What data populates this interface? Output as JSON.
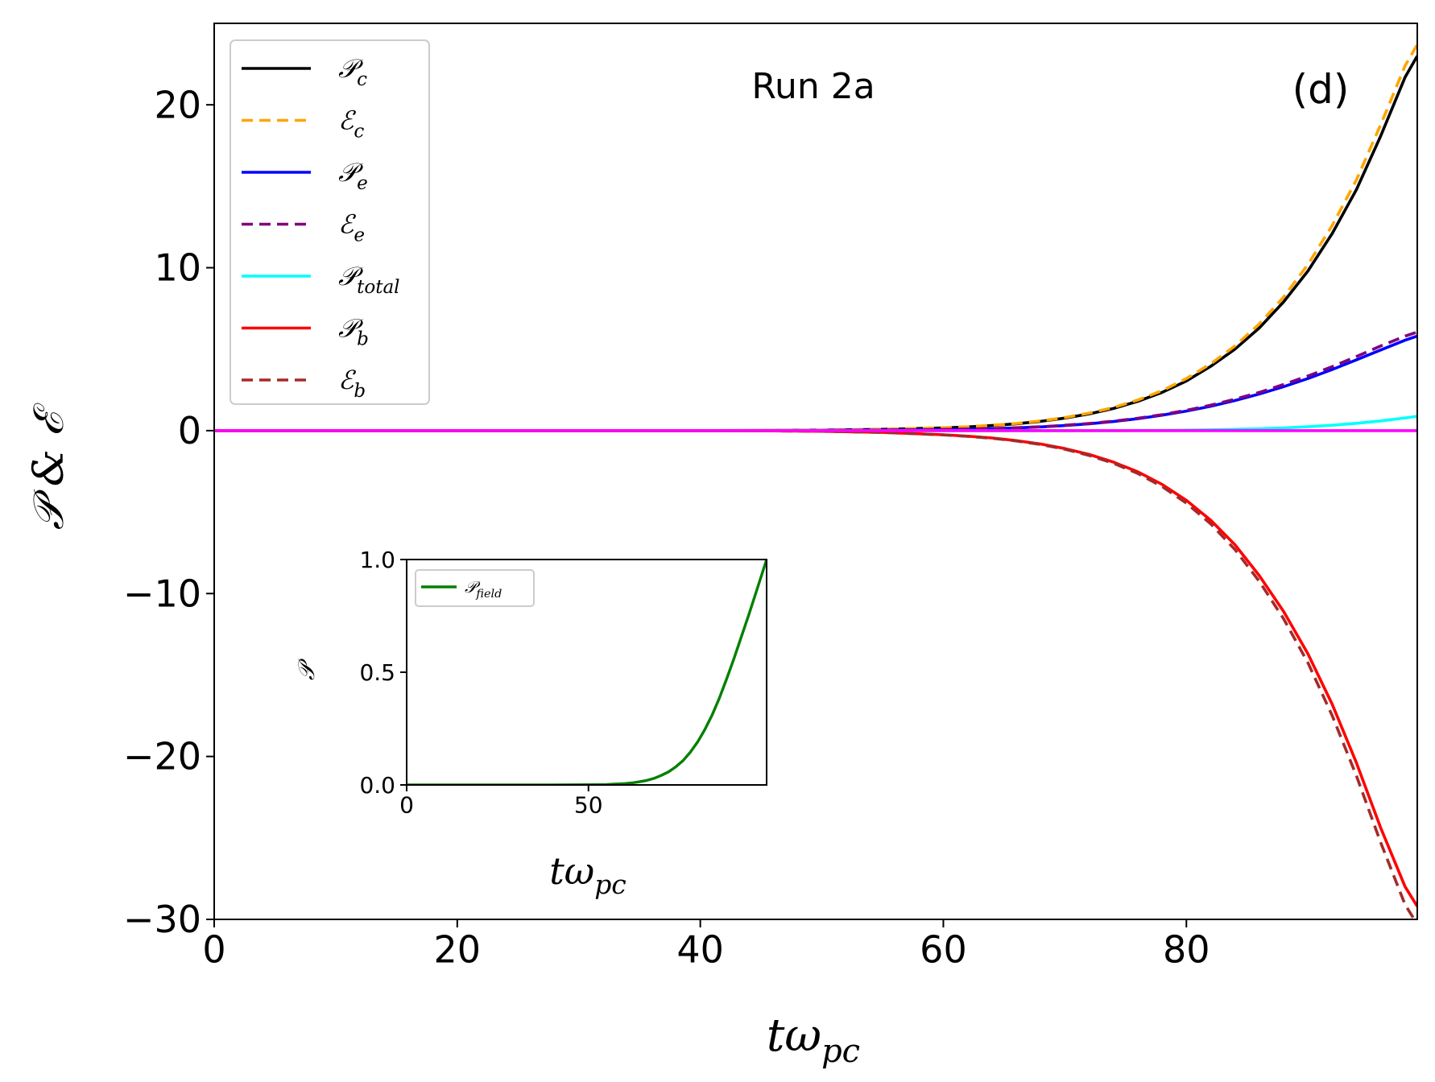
{
  "chart_data": [
    {
      "id": "main",
      "type": "line",
      "title": "",
      "annotations": [
        {
          "id": "run-label",
          "text": "Run 2a"
        },
        {
          "id": "panel-label",
          "text": "(d)"
        }
      ],
      "xlabel": {
        "base": "tω",
        "sub": "pc"
      },
      "ylabel": "𝒫 & ℰ",
      "xlim": [
        0,
        99
      ],
      "ylim": [
        -30,
        25
      ],
      "xticks": [
        0,
        20,
        40,
        60,
        80
      ],
      "yticks": [
        20,
        10,
        0,
        -10,
        -20,
        -30
      ],
      "grid": false,
      "legend_position": "top-left",
      "x": [
        0,
        10,
        20,
        30,
        40,
        45,
        50,
        55,
        60,
        62,
        64,
        66,
        68,
        70,
        72,
        74,
        76,
        78,
        80,
        82,
        84,
        86,
        88,
        90,
        92,
        94,
        96,
        98,
        99
      ],
      "series": [
        {
          "name": "𝒫c",
          "base": "𝒫",
          "sub": "c",
          "color": "#000000",
          "dash": "solid",
          "values": [
            0,
            0,
            0,
            0,
            0,
            0.01,
            0.03,
            0.08,
            0.17,
            0.23,
            0.31,
            0.42,
            0.57,
            0.77,
            1.03,
            1.36,
            1.8,
            2.35,
            3.05,
            3.95,
            5.0,
            6.3,
            7.9,
            9.8,
            12.1,
            14.8,
            18.1,
            21.7,
            23.0
          ]
        },
        {
          "name": "ℰc",
          "base": "ℰ",
          "sub": "c",
          "color": "#ffa500",
          "dash": "dashed",
          "values": [
            0,
            0,
            0,
            0,
            0,
            0.01,
            0.03,
            0.08,
            0.18,
            0.24,
            0.33,
            0.44,
            0.6,
            0.8,
            1.08,
            1.42,
            1.88,
            2.45,
            3.2,
            4.1,
            5.2,
            6.55,
            8.2,
            10.2,
            12.6,
            15.4,
            18.8,
            22.4,
            23.7
          ]
        },
        {
          "name": "𝒫e",
          "base": "𝒫",
          "sub": "e",
          "color": "#0000ff",
          "dash": "solid",
          "values": [
            0,
            0,
            0,
            0,
            0,
            0,
            0.01,
            0.03,
            0.07,
            0.09,
            0.12,
            0.17,
            0.23,
            0.31,
            0.42,
            0.56,
            0.73,
            0.95,
            1.2,
            1.5,
            1.85,
            2.25,
            2.7,
            3.2,
            3.75,
            4.35,
            4.95,
            5.55,
            5.8
          ]
        },
        {
          "name": "ℰe",
          "base": "ℰ",
          "sub": "e",
          "color": "#800080",
          "dash": "dashed",
          "values": [
            0,
            0,
            0,
            0,
            0,
            0,
            0.01,
            0.03,
            0.07,
            0.1,
            0.13,
            0.18,
            0.24,
            0.33,
            0.44,
            0.58,
            0.76,
            0.98,
            1.25,
            1.56,
            1.93,
            2.35,
            2.83,
            3.35,
            3.93,
            4.55,
            5.2,
            5.8,
            6.05
          ]
        },
        {
          "name": "𝒫total",
          "base": "𝒫",
          "sub": "total",
          "color": "#00ffff",
          "dash": "solid",
          "values": [
            0,
            0,
            0,
            0,
            0,
            0,
            0,
            0,
            0,
            0,
            0,
            0,
            0,
            0,
            0,
            0,
            0.01,
            0.02,
            0.03,
            0.05,
            0.08,
            0.12,
            0.17,
            0.24,
            0.33,
            0.45,
            0.6,
            0.78,
            0.88
          ]
        },
        {
          "name": "𝒫b",
          "base": "𝒫",
          "sub": "b",
          "color": "#ff0000",
          "dash": "solid",
          "values": [
            0,
            0,
            0,
            0,
            0,
            -0.01,
            -0.04,
            -0.11,
            -0.25,
            -0.34,
            -0.45,
            -0.61,
            -0.82,
            -1.1,
            -1.46,
            -1.93,
            -2.53,
            -3.3,
            -4.28,
            -5.5,
            -7.0,
            -8.9,
            -11.1,
            -13.7,
            -16.8,
            -20.4,
            -24.4,
            -28.0,
            -29.2
          ]
        },
        {
          "name": "ℰb",
          "base": "ℰ",
          "sub": "b",
          "color": "#a52a2a",
          "dash": "dashed",
          "values": [
            0,
            0,
            0,
            0,
            0,
            -0.01,
            -0.04,
            -0.11,
            -0.26,
            -0.35,
            -0.47,
            -0.63,
            -0.85,
            -1.14,
            -1.52,
            -2.0,
            -2.63,
            -3.43,
            -4.45,
            -5.72,
            -7.3,
            -9.25,
            -11.55,
            -14.25,
            -17.5,
            -21.2,
            -25.3,
            -29.1,
            -30.3
          ]
        },
        {
          "name": "zero",
          "color": "#ff00ff",
          "dash": "solid",
          "legend": false,
          "values": [
            0,
            0,
            0,
            0,
            0,
            0,
            0,
            0,
            0,
            0,
            0,
            0,
            0,
            0,
            0,
            0,
            0,
            0,
            0,
            0,
            0,
            0,
            0,
            0,
            0,
            0,
            0,
            0,
            0
          ]
        }
      ]
    },
    {
      "id": "inset",
      "type": "line",
      "title": "",
      "xlabel": {
        "base": "tω",
        "sub": "pc"
      },
      "ylabel": "𝒫",
      "xlim": [
        0,
        99
      ],
      "ylim": [
        0,
        1
      ],
      "xticks": [
        0,
        50
      ],
      "yticks": [
        1.0,
        0.5,
        0.0
      ],
      "ytick_labels": [
        "1.0",
        "0.5",
        "0.0"
      ],
      "legend_position": "top-left",
      "x": [
        0,
        10,
        20,
        30,
        40,
        50,
        55,
        60,
        62,
        64,
        66,
        68,
        70,
        72,
        74,
        76,
        78,
        80,
        82,
        84,
        86,
        88,
        90,
        92,
        94,
        96,
        98,
        99
      ],
      "series": [
        {
          "name": "𝒫field",
          "base": "𝒫",
          "sub": "field",
          "color": "#008000",
          "dash": "solid",
          "values": [
            0,
            0,
            0,
            0,
            0,
            0.001,
            0.002,
            0.006,
            0.009,
            0.014,
            0.02,
            0.029,
            0.042,
            0.058,
            0.08,
            0.108,
            0.145,
            0.19,
            0.245,
            0.31,
            0.385,
            0.47,
            0.56,
            0.655,
            0.75,
            0.85,
            0.95,
            1.0
          ]
        }
      ]
    }
  ]
}
